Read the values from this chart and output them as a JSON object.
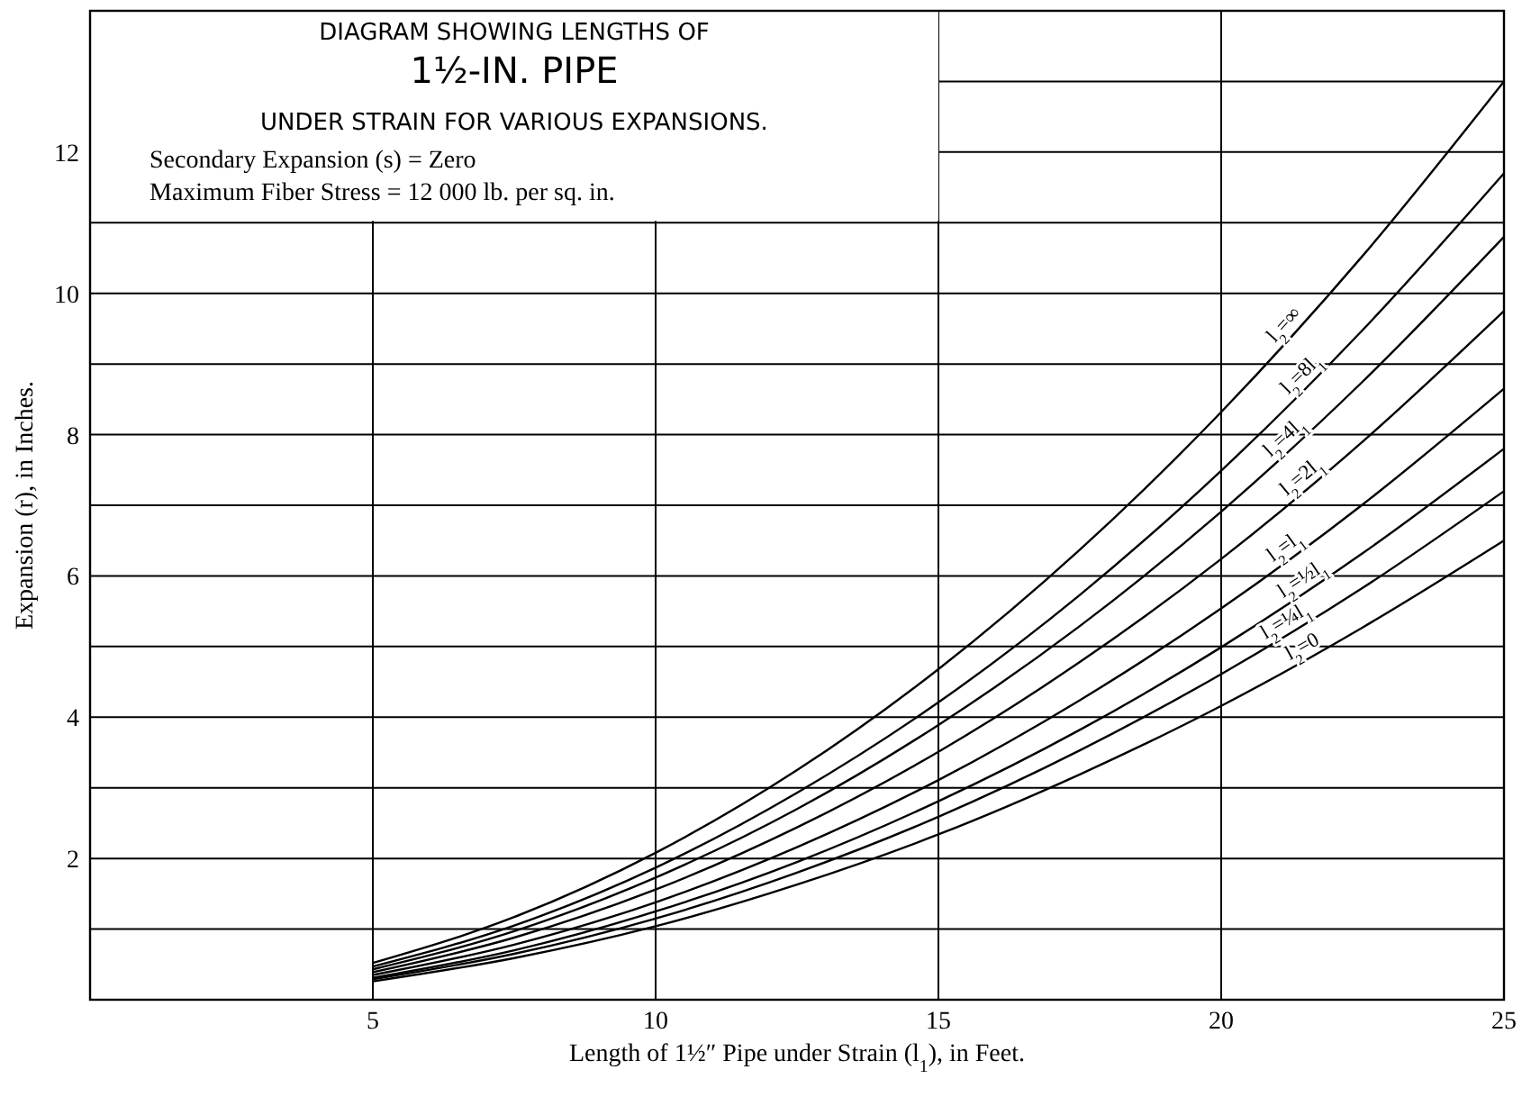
{
  "chart_data": {
    "type": "line",
    "title": "DIAGRAM SHOWING LENGTHS OF\n1½-IN. PIPE\nUNDER STRAIN FOR VARIOUS EXPANSIONS.",
    "annotations": [
      "Secondary Expansion (s) = Zero",
      "Maximum Fiber Stress = 12 000 lb. per sq. in."
    ],
    "xlabel": "Length of 1½″ Pipe under Strain (l$_{1}$), in Feet.",
    "ylabel": "Expansion (r), in Inches.",
    "x": [
      5,
      7.5,
      10,
      12.5,
      15,
      17.5,
      20,
      22.5,
      25
    ],
    "xlim": [
      0,
      25
    ],
    "xticks": [
      5,
      10,
      15,
      20,
      25
    ],
    "ylim": [
      0,
      14
    ],
    "yticks": [
      {
        "value": 1,
        "label": null
      },
      2,
      {
        "value": 3,
        "label": null
      },
      4,
      {
        "value": 5,
        "label": null
      },
      6,
      {
        "value": 7,
        "label": null
      },
      8,
      {
        "value": 9,
        "label": null
      },
      10,
      {
        "value": 11,
        "label": null
      },
      12,
      {
        "value": 13,
        "label": null
      }
    ],
    "grid": true,
    "marker": "none",
    "line_style": "solid",
    "series": [
      {
        "name": "l$_{2}$=∞",
        "color": "#000000",
        "values": [
          0.52,
          1.17,
          2.08,
          3.25,
          4.68,
          6.37,
          8.32,
          10.53,
          13
        ]
      },
      {
        "name": "l$_{2}$=8l$_{1}$",
        "color": "#000000",
        "values": [
          0.47,
          1.05,
          1.87,
          2.93,
          4.21,
          5.73,
          7.49,
          9.48,
          11.7
        ]
      },
      {
        "name": "l$_{2}$=4l$_{1}$",
        "color": "#000000",
        "values": [
          0.43,
          0.97,
          1.73,
          2.7,
          3.89,
          5.29,
          6.91,
          8.75,
          10.8
        ]
      },
      {
        "name": "l$_{2}$=2l$_{1}$",
        "color": "#000000",
        "values": [
          0.39,
          0.88,
          1.56,
          2.44,
          3.51,
          4.78,
          6.24,
          7.9,
          9.75
        ]
      },
      {
        "name": "l$_{2}$=l$_{1}$",
        "color": "#000000",
        "values": [
          0.35,
          0.78,
          1.38,
          2.16,
          3.11,
          4.24,
          5.54,
          7.01,
          8.65
        ]
      },
      {
        "name": "l$_{2}$=½l$_{1}$",
        "color": "#000000",
        "values": [
          0.31,
          0.7,
          1.25,
          1.95,
          2.81,
          3.82,
          4.99,
          6.32,
          7.8
        ]
      },
      {
        "name": "l$_{2}$=¼l$_{1}$",
        "color": "#000000",
        "values": [
          0.29,
          0.65,
          1.15,
          1.8,
          2.59,
          3.53,
          4.61,
          5.83,
          7.2
        ]
      },
      {
        "name": "l$_{2}$=0",
        "color": "#000000",
        "values": [
          0.26,
          0.59,
          1.04,
          1.63,
          2.34,
          3.19,
          4.16,
          5.27,
          6.5
        ]
      }
    ]
  }
}
